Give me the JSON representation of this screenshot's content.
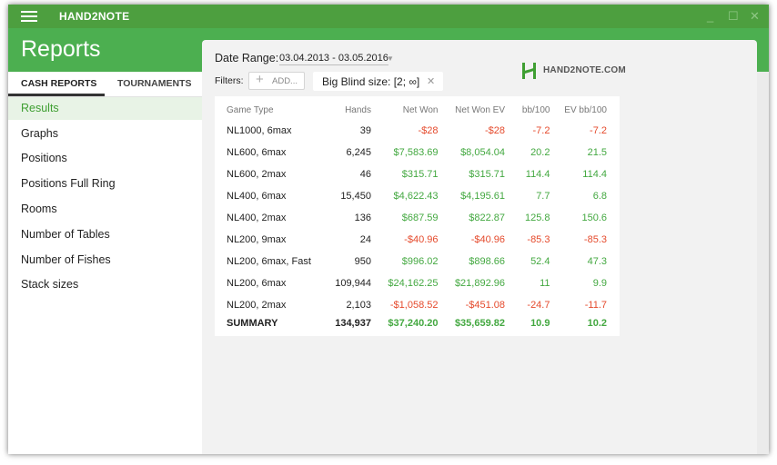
{
  "app": {
    "name": "HAND2NOTE"
  },
  "window_controls": {
    "minimize": "_",
    "maximize": "☐",
    "close": "✕"
  },
  "header": {
    "title": "Reports"
  },
  "sidebar": {
    "tabs": [
      {
        "label": "CASH REPORTS"
      },
      {
        "label": "TOURNAMENTS"
      }
    ],
    "items": [
      {
        "label": "Results"
      },
      {
        "label": "Graphs"
      },
      {
        "label": "Positions"
      },
      {
        "label": "Positions Full Ring"
      },
      {
        "label": "Rooms"
      },
      {
        "label": "Number of Tables"
      },
      {
        "label": "Number of Fishes"
      },
      {
        "label": "Stack sizes"
      }
    ]
  },
  "toolbar": {
    "date_label": "Date Range:",
    "date_value": "03.04.2013 - 03.05.2016",
    "filters_label": "Filters:",
    "add_label": "ADD...",
    "filter_chip": "Big Blind size: [2; ∞]",
    "logo_text": "HAND2NOTE.COM"
  },
  "colors": {
    "accent": "#4caf50",
    "titlebar": "#4d9f3f",
    "positive": "#43a840",
    "negative": "#e54a2c"
  },
  "table": {
    "headers": [
      "Game Type",
      "Hands",
      "Net Won",
      "Net Won  EV",
      "bb/100",
      "EV bb/100"
    ],
    "rows": [
      [
        "NL1000, 6max",
        "39",
        "-$28",
        "-$28",
        "-7.2",
        "-7.2"
      ],
      [
        "NL600, 6max",
        "6,245",
        "$7,583.69",
        "$8,054.04",
        "20.2",
        "21.5"
      ],
      [
        "NL600, 2max",
        "46",
        "$315.71",
        "$315.71",
        "114.4",
        "114.4"
      ],
      [
        "NL400, 6max",
        "15,450",
        "$4,622.43",
        "$4,195.61",
        "7.7",
        "6.8"
      ],
      [
        "NL400, 2max",
        "136",
        "$687.59",
        "$822.87",
        "125.8",
        "150.6"
      ],
      [
        "NL200, 9max",
        "24",
        "-$40.96",
        "-$40.96",
        "-85.3",
        "-85.3"
      ],
      [
        "NL200, 6max, Fast",
        "950",
        "$996.02",
        "$898.66",
        "52.4",
        "47.3"
      ],
      [
        "NL200, 6max",
        "109,944",
        "$24,162.25",
        "$21,892.96",
        "11",
        "9.9"
      ],
      [
        "NL200, 2max",
        "2,103",
        "-$1,058.52",
        "-$451.08",
        "-24.7",
        "-11.7"
      ]
    ],
    "summary": [
      "SUMMARY",
      "134,937",
      "$37,240.20",
      "$35,659.82",
      "10.9",
      "10.2"
    ]
  }
}
